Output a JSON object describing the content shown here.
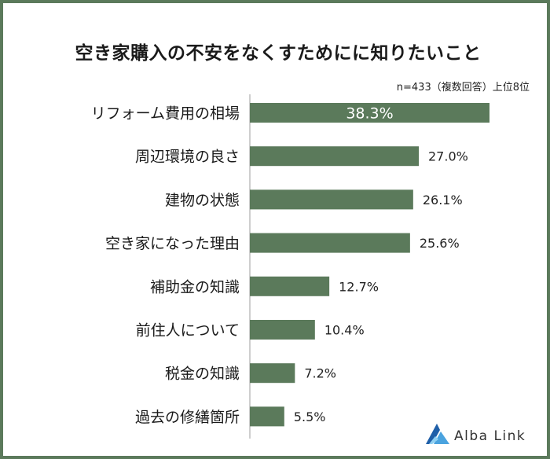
{
  "brand": {
    "name": "Alba Link",
    "bar_color": "#5b7a5b",
    "frame_color": "#5b7a5b"
  },
  "chart_data": {
    "type": "bar",
    "orientation": "horizontal",
    "title": "空き家購入の不安をなくすためにに知りたいこと",
    "note": "n=433（複数回答）上位8位",
    "categories": [
      "リフォーム費用の相場",
      "周辺環境の良さ",
      "建物の状態",
      "空き家になった理由",
      "補助金の知識",
      "前住人について",
      "税金の知識",
      "過去の修繕箇所"
    ],
    "values": [
      38.3,
      27.0,
      26.1,
      25.6,
      12.7,
      10.4,
      7.2,
      5.5
    ],
    "labels": [
      "38.3%",
      "27.0%",
      "26.1%",
      "25.6%",
      "12.7%",
      "10.4%",
      "7.2%",
      "5.5%"
    ],
    "unit": "%",
    "xlim": [
      0,
      38.3
    ],
    "grid": false,
    "legend": "none"
  }
}
